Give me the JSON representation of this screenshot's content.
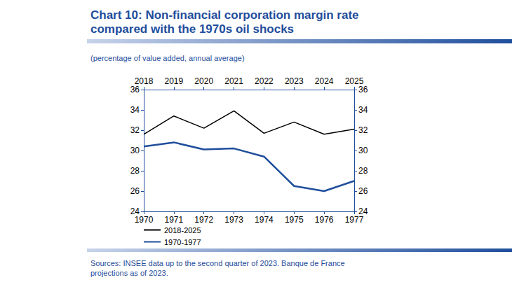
{
  "chart_data": {
    "type": "line",
    "title": "Chart 10: Non-financial corporation margin rate compared with the 1970s oil shocks",
    "subtitle": "(percentage of value added, annual average)",
    "source": "Sources: INSEE data up to the second quarter of 2023. Banque de France projections as of 2023.",
    "categories": [
      "1970",
      "1971",
      "1972",
      "1973",
      "1974",
      "1975",
      "1976",
      "1977"
    ],
    "x2_categories": [
      "2018",
      "2019",
      "2020",
      "2021",
      "2022",
      "2023",
      "2024",
      "2025"
    ],
    "series": [
      {
        "name": "2018-2025",
        "color": "#000000",
        "axis": "x2",
        "values": [
          31.6,
          33.4,
          32.2,
          33.9,
          31.7,
          32.8,
          31.6,
          32.1
        ]
      },
      {
        "name": "1970-1977",
        "color": "#1f4e9c",
        "values": [
          30.4,
          30.8,
          30.1,
          30.2,
          29.4,
          26.5,
          26.0,
          27.0
        ]
      }
    ],
    "ylim": [
      24,
      36
    ],
    "yticks": [
      24,
      26,
      28,
      30,
      32,
      34,
      36
    ],
    "y2lim": [
      24,
      36
    ],
    "y2ticks": [
      24,
      26,
      28,
      30,
      32,
      34,
      36
    ],
    "grid": false,
    "legend": "bottom-left"
  }
}
